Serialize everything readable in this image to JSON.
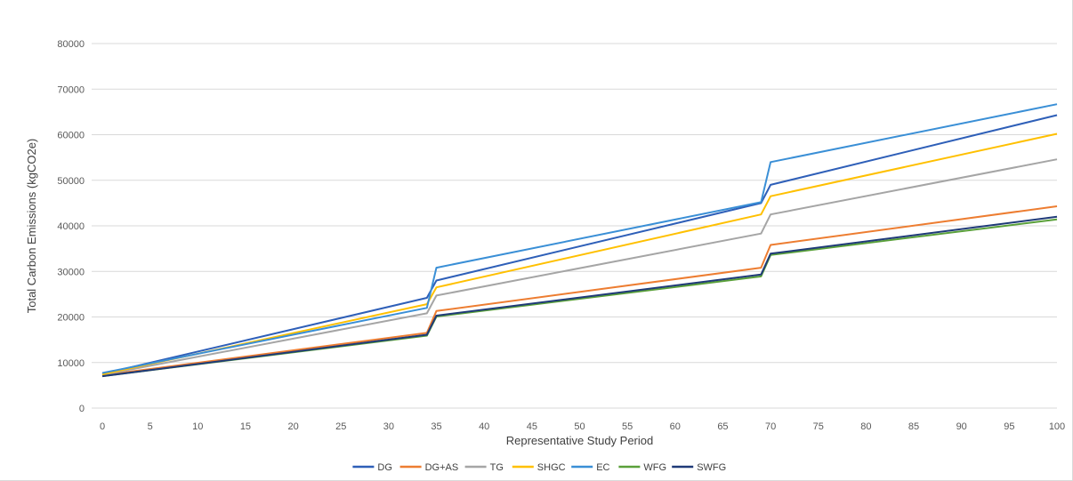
{
  "chart_data": {
    "type": "line",
    "title": "",
    "xlabel": "Representative Study Period",
    "ylabel": "Total Carbon Emissions (kgCO2e)",
    "xlim": [
      0,
      100
    ],
    "ylim": [
      0,
      80000
    ],
    "x_ticks": [
      0,
      5,
      10,
      15,
      20,
      25,
      30,
      35,
      40,
      45,
      50,
      55,
      60,
      65,
      70,
      75,
      80,
      85,
      90,
      95,
      100
    ],
    "y_ticks": [
      0,
      10000,
      20000,
      30000,
      40000,
      50000,
      60000,
      70000,
      80000
    ],
    "grid": "horizontal",
    "legend_position": "bottom",
    "x": [
      0,
      34,
      35,
      69,
      70,
      100
    ],
    "series": [
      {
        "name": "DG",
        "color": "#2e5fb8",
        "values": [
          7500,
          24200,
          28000,
          45000,
          49000,
          64300
        ]
      },
      {
        "name": "DG+AS",
        "color": "#ed7d31",
        "values": [
          7200,
          16500,
          21300,
          30800,
          35800,
          44300
        ]
      },
      {
        "name": "TG",
        "color": "#a5a5a5",
        "values": [
          7300,
          20800,
          24700,
          38300,
          42500,
          54600
        ]
      },
      {
        "name": "SHGC",
        "color": "#ffc000",
        "values": [
          7400,
          22800,
          26500,
          42500,
          46500,
          60200
        ]
      },
      {
        "name": "EC",
        "color": "#3a8fd6",
        "values": [
          7700,
          22000,
          30800,
          45200,
          54000,
          66700
        ]
      },
      {
        "name": "WFG",
        "color": "#5aa03a",
        "values": [
          7000,
          15900,
          20100,
          28900,
          33600,
          41400
        ]
      },
      {
        "name": "SWFG",
        "color": "#1f3a78",
        "values": [
          7000,
          16100,
          20300,
          29300,
          33900,
          42000
        ]
      }
    ]
  }
}
